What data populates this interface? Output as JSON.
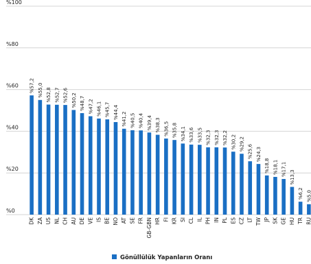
{
  "chart_data": {
    "type": "bar",
    "categories": [
      "DK",
      "ZA",
      "US",
      "NL",
      "CH",
      "AU",
      "DE",
      "VE",
      "IS",
      "BE",
      "NO",
      "AT",
      "SE",
      "FR",
      "GB-GBN",
      "HR",
      "FI",
      "KR",
      "SI",
      "CL",
      "IL",
      "PH",
      "IN",
      "PL",
      "ES",
      "CZ",
      "LT",
      "TW",
      "JP",
      "SK",
      "GE",
      "HU",
      "TR",
      "RU"
    ],
    "series": [
      {
        "name": "Gönüllülük Yapanların Oranı",
        "values": [
          57.2,
          55.0,
          52.8,
          52.7,
          52.6,
          50.2,
          48.7,
          47.2,
          46.1,
          45.7,
          44.4,
          41.2,
          40.5,
          40.4,
          39.4,
          38.3,
          36.5,
          35.8,
          34.1,
          33.6,
          33.5,
          32.3,
          32.3,
          32.2,
          30.2,
          29.2,
          25.6,
          24.3,
          18.8,
          18.1,
          17.1,
          13.3,
          6.2,
          5.0
        ],
        "labels": [
          "%57,2",
          "%55,0",
          "%52,8",
          "%52,7",
          "%52,6",
          "%50,2",
          "%48,7",
          "%47,2",
          "%46,1",
          "%45,7",
          "%44,4",
          "%41,2",
          "%40,5",
          "%40,4",
          "%39,4",
          "%38,3",
          "%36,5",
          "%35,8",
          "%34,1",
          "%33,6",
          "%33,5",
          "%32,3",
          "%32,3",
          "%32,2",
          "%30,2",
          "%29,2",
          "%25,6",
          "%24,3",
          "%18,8",
          "%18,1",
          "%17,1",
          "%13,3",
          "%6,2",
          "%5,0"
        ]
      }
    ],
    "ylim": [
      0,
      100
    ],
    "yticks": [
      0,
      20,
      40,
      60,
      80,
      100
    ],
    "ytick_labels": [
      "%0",
      "%20",
      "%40",
      "%60",
      "%80",
      "%100"
    ],
    "grid": true,
    "legend": "bottom-center",
    "color": "#1a6fc4"
  }
}
